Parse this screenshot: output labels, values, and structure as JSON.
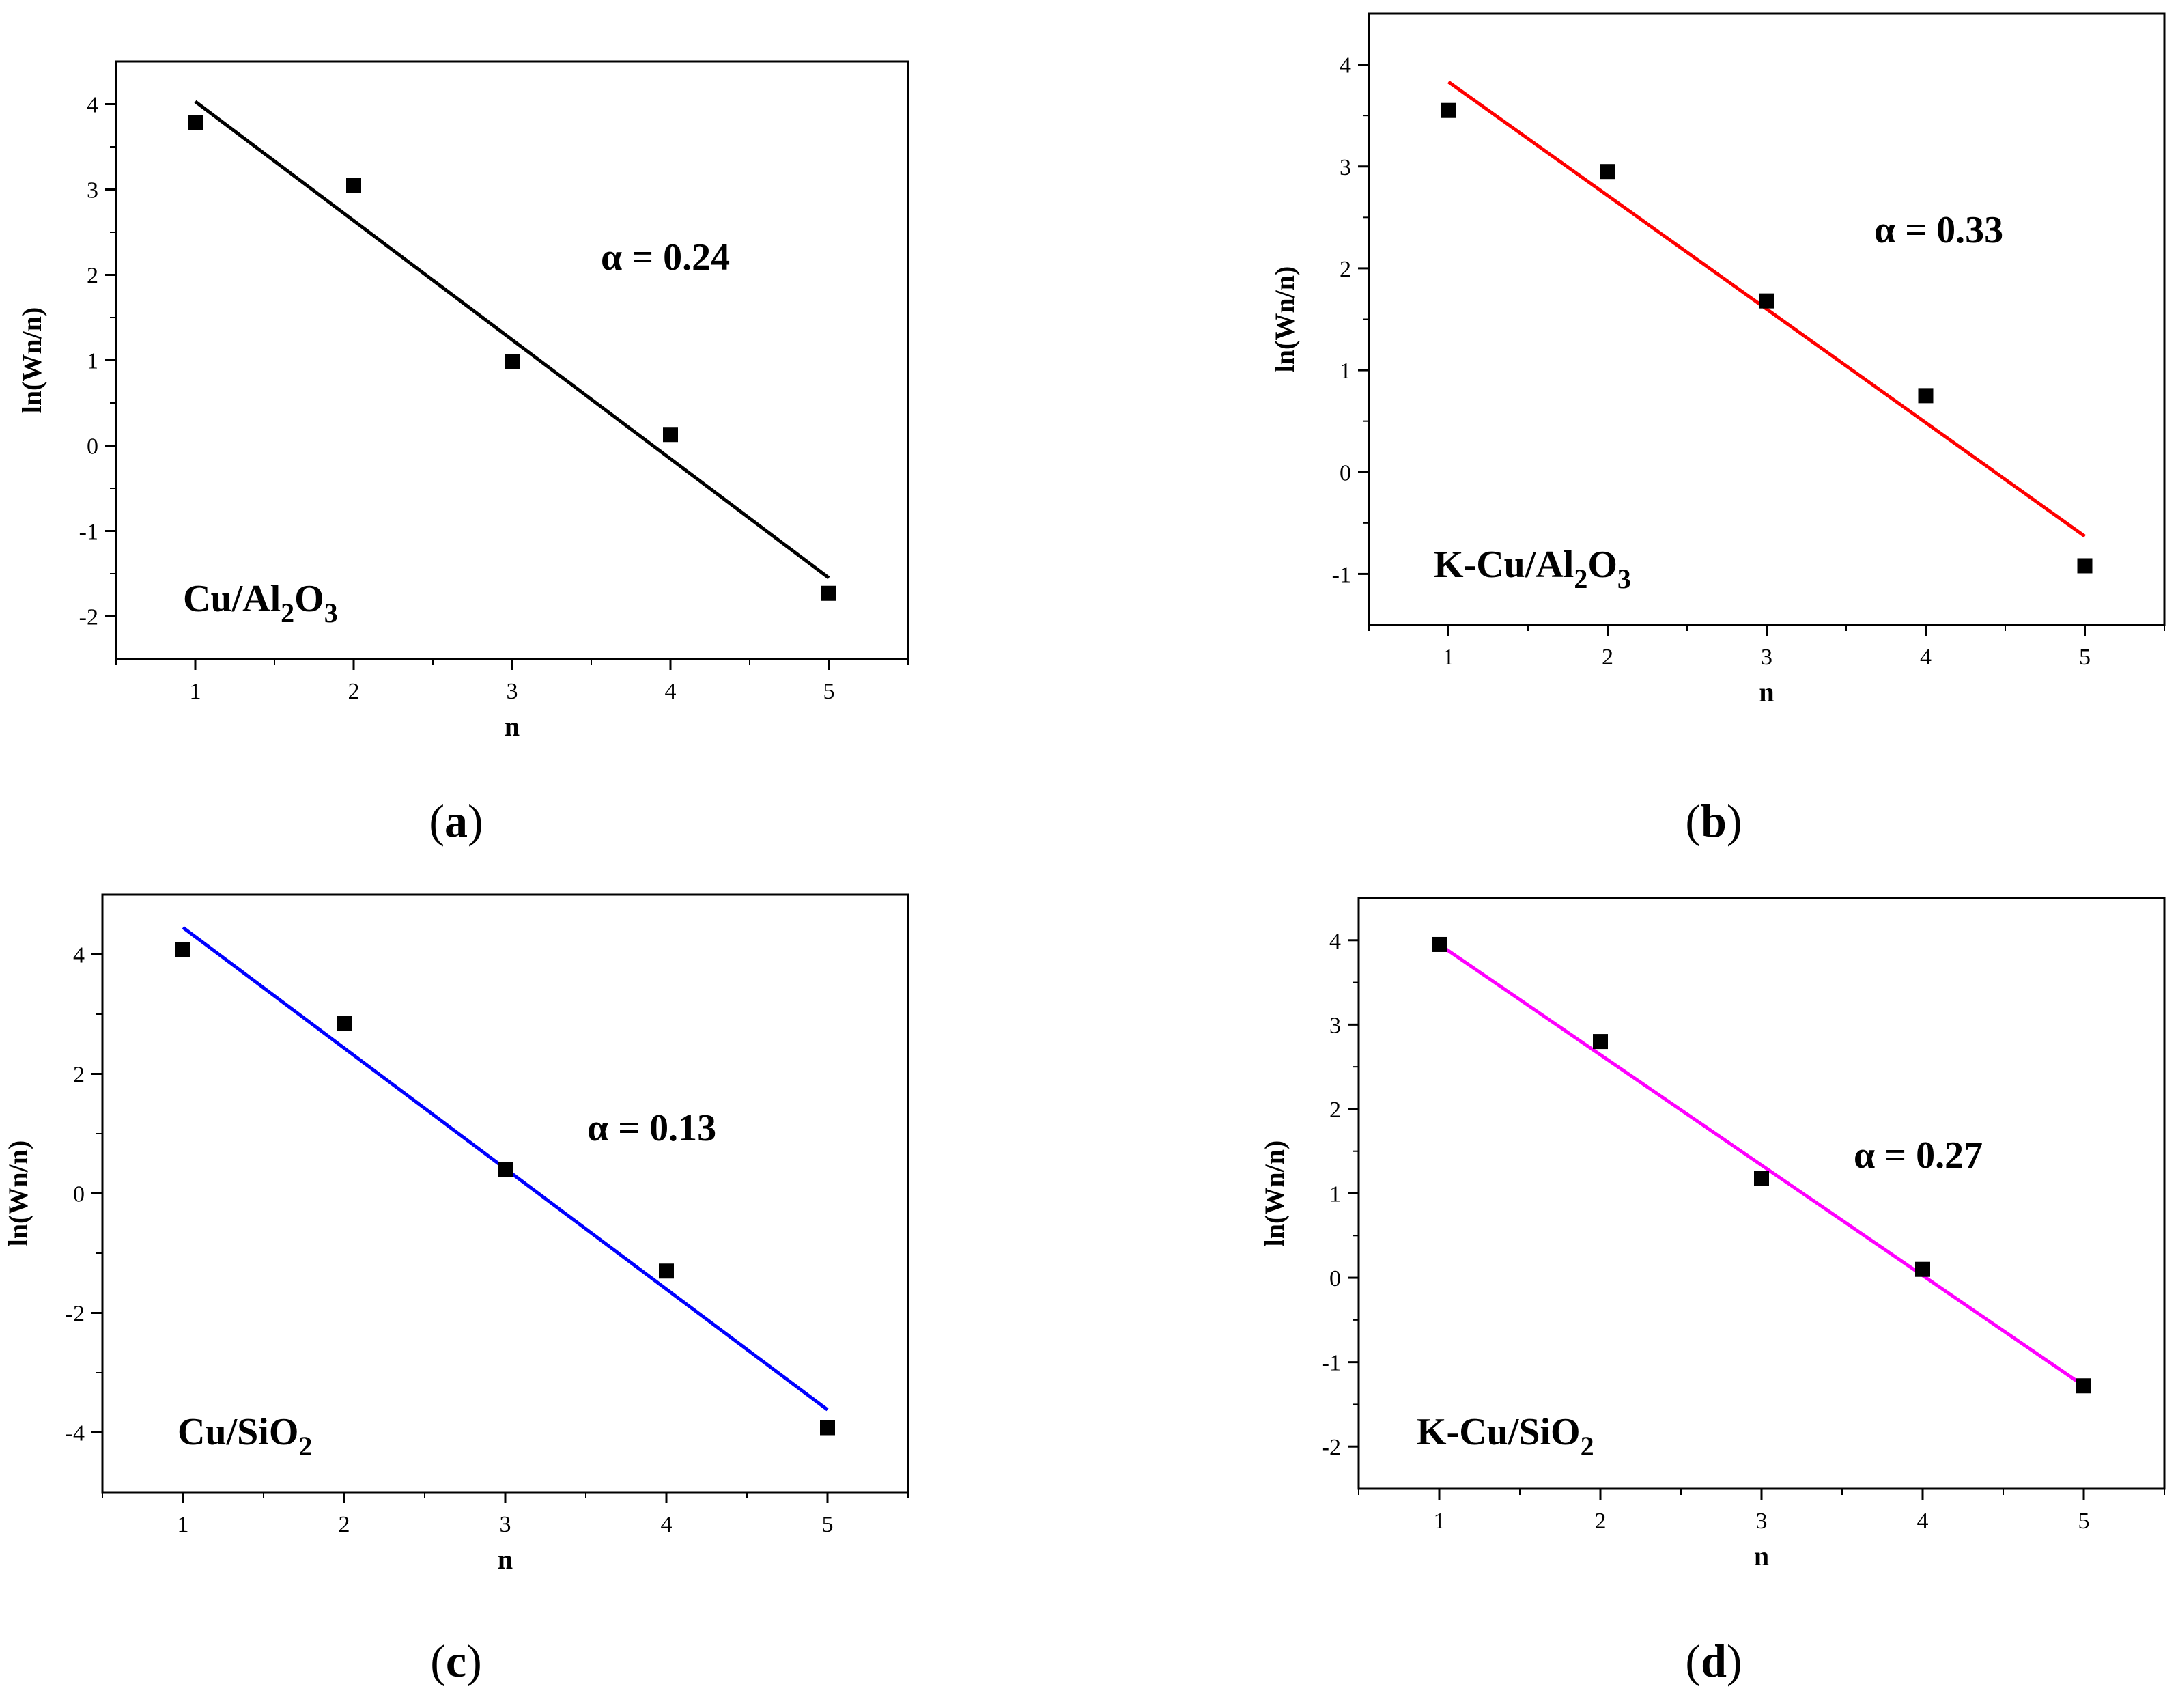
{
  "chart_data": [
    {
      "type": "scatter",
      "panel_label": "a",
      "sample_label": {
        "prefix": "Cu/Al",
        "sub1": "2",
        "mid": "O",
        "sub2": "3"
      },
      "annotation": "α = 0.24",
      "xlabel": "n",
      "ylabel": "ln(Wn/n)",
      "xlim": [
        0.5,
        5.5
      ],
      "ylim": [
        -2.5,
        4.5
      ],
      "xticks": [
        1,
        2,
        3,
        4,
        5
      ],
      "yticks": [
        -2,
        -1,
        0,
        1,
        2,
        3,
        4
      ],
      "points": {
        "x": [
          1,
          2,
          3,
          4,
          5
        ],
        "y": [
          3.78,
          3.05,
          0.98,
          0.13,
          -1.73
        ]
      },
      "fit_line": {
        "x": [
          1,
          5
        ],
        "y": [
          4.03,
          -1.55
        ],
        "color": "#000000"
      }
    },
    {
      "type": "scatter",
      "panel_label": "b",
      "sample_label": {
        "prefix": "K-Cu/Al",
        "sub1": "2",
        "mid": "O",
        "sub2": "3"
      },
      "annotation": "α = 0.33",
      "xlabel": "n",
      "ylabel": "ln(Wn/n)",
      "xlim": [
        0.5,
        5.5
      ],
      "ylim": [
        -1.5,
        4.5
      ],
      "xticks": [
        1,
        2,
        3,
        4,
        5
      ],
      "yticks": [
        -1,
        0,
        1,
        2,
        3,
        4
      ],
      "points": {
        "x": [
          1,
          2,
          3,
          4,
          5
        ],
        "y": [
          3.55,
          2.95,
          1.68,
          0.75,
          -0.92
        ]
      },
      "fit_line": {
        "x": [
          1,
          5
        ],
        "y": [
          3.83,
          -0.63
        ],
        "color": "#ff0000"
      }
    },
    {
      "type": "scatter",
      "panel_label": "c",
      "sample_label": {
        "prefix": "Cu/SiO",
        "sub1": "2",
        "mid": "",
        "sub2": ""
      },
      "annotation": "α = 0.13",
      "xlabel": "n",
      "ylabel": "ln(Wn/n)",
      "xlim": [
        0.5,
        5.5
      ],
      "ylim": [
        -5,
        5
      ],
      "xticks": [
        1,
        2,
        3,
        4,
        5
      ],
      "yticks": [
        -4,
        -2,
        0,
        2,
        4
      ],
      "points": {
        "x": [
          1,
          2,
          3,
          4,
          5
        ],
        "y": [
          4.08,
          2.85,
          0.4,
          -1.3,
          -3.92
        ]
      },
      "fit_line": {
        "x": [
          1,
          5
        ],
        "y": [
          4.45,
          -3.62
        ],
        "color": "#0000ff"
      }
    },
    {
      "type": "scatter",
      "panel_label": "d",
      "sample_label": {
        "prefix": "K-Cu/SiO",
        "sub1": "2",
        "mid": "",
        "sub2": ""
      },
      "annotation": "α = 0.27",
      "xlabel": "n",
      "ylabel": "ln(Wn/n)",
      "xlim": [
        0.5,
        5.5
      ],
      "ylim": [
        -2.5,
        4.5
      ],
      "xticks": [
        1,
        2,
        3,
        4,
        5
      ],
      "yticks": [
        -2,
        -1,
        0,
        1,
        2,
        3,
        4
      ],
      "points": {
        "x": [
          1,
          2,
          3,
          4,
          5
        ],
        "y": [
          3.95,
          2.8,
          1.18,
          0.1,
          -1.28
        ]
      },
      "fit_line": {
        "x": [
          1,
          5
        ],
        "y": [
          3.95,
          -1.28
        ],
        "color": "#ff00ff"
      }
    }
  ]
}
